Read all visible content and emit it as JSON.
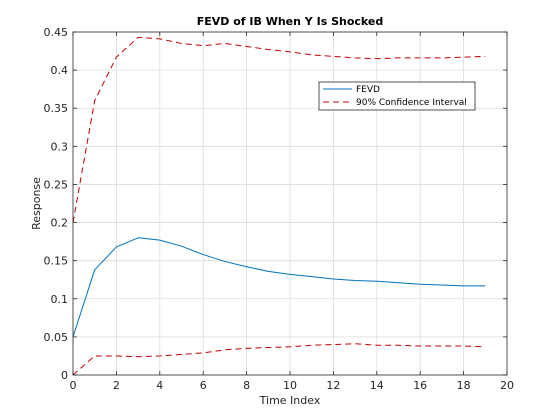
{
  "chart_data": {
    "type": "line",
    "title": "FEVD of IB When Y Is Shocked",
    "xlabel": "Time Index",
    "ylabel": "Response",
    "xlim": [
      0,
      20
    ],
    "ylim": [
      0,
      0.45
    ],
    "xticks": [
      0,
      2,
      4,
      6,
      8,
      10,
      12,
      14,
      16,
      18,
      20
    ],
    "yticks": [
      0,
      0.05,
      0.1,
      0.15,
      0.2,
      0.25,
      0.3,
      0.35,
      0.4,
      0.45
    ],
    "xtick_labels": [
      "0",
      "2",
      "4",
      "6",
      "8",
      "10",
      "12",
      "14",
      "16",
      "18",
      "20"
    ],
    "ytick_labels": [
      "0",
      "0.05",
      "0.1",
      "0.15",
      "0.2",
      "0.25",
      "0.3",
      "0.35",
      "0.4",
      "0.45"
    ],
    "grid": true,
    "legend_position": "top-right",
    "x": [
      0,
      1,
      2,
      3,
      4,
      5,
      6,
      7,
      8,
      9,
      10,
      11,
      12,
      13,
      14,
      15,
      16,
      17,
      18,
      19
    ],
    "series": [
      {
        "name": "FEVD",
        "style": "solid",
        "color": "#0072bd",
        "values": [
          0.05,
          0.138,
          0.168,
          0.18,
          0.177,
          0.169,
          0.158,
          0.149,
          0.142,
          0.136,
          0.132,
          0.129,
          0.126,
          0.124,
          0.123,
          0.121,
          0.119,
          0.118,
          0.117,
          0.117
        ]
      },
      {
        "name": "90% Confidence Interval",
        "style": "dashed",
        "color": "#c00000",
        "values": [
          0.2,
          0.36,
          0.417,
          0.443,
          0.441,
          0.435,
          0.432,
          0.435,
          0.431,
          0.427,
          0.424,
          0.42,
          0.418,
          0.416,
          0.415,
          0.416,
          0.416,
          0.416,
          0.417,
          0.418
        ]
      },
      {
        "name": "",
        "style": "dashed",
        "color": "#c00000",
        "values": [
          0.0,
          0.025,
          0.025,
          0.024,
          0.025,
          0.027,
          0.029,
          0.033,
          0.035,
          0.036,
          0.037,
          0.039,
          0.04,
          0.041,
          0.039,
          0.039,
          0.038,
          0.038,
          0.038,
          0.037
        ]
      }
    ]
  }
}
